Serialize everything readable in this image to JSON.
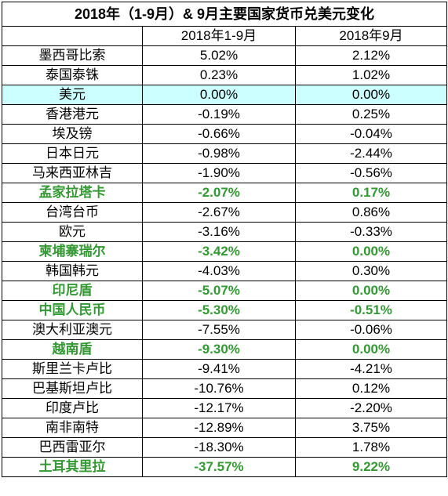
{
  "chart_data": {
    "type": "table",
    "title": "2018年（1-9月）& 9月主要国家货币兑美元变化",
    "columns": [
      "",
      "2018年1-9月",
      "2018年9月"
    ],
    "highlight_color": "#ccffff",
    "emphasis_color": "#339933",
    "rows": [
      {
        "name": "墨西哥比索",
        "ytd": "5.02%",
        "sep": "2.12%",
        "style": "normal"
      },
      {
        "name": "泰国泰铢",
        "ytd": "0.23%",
        "sep": "1.02%",
        "style": "normal"
      },
      {
        "name": "美元",
        "ytd": "0.00%",
        "sep": "0.00%",
        "style": "highlight"
      },
      {
        "name": "香港港元",
        "ytd": "-0.19%",
        "sep": "0.25%",
        "style": "normal"
      },
      {
        "name": "埃及镑",
        "ytd": "-0.66%",
        "sep": "-0.04%",
        "style": "normal"
      },
      {
        "name": "日本日元",
        "ytd": "-0.98%",
        "sep": "-2.44%",
        "style": "normal"
      },
      {
        "name": "马来西亚林吉",
        "ytd": "-1.90%",
        "sep": "-0.56%",
        "style": "normal"
      },
      {
        "name": "孟家拉塔卡",
        "ytd": "-2.07%",
        "sep": "0.17%",
        "style": "emphasis"
      },
      {
        "name": "台湾台币",
        "ytd": "-2.67%",
        "sep": "0.86%",
        "style": "normal"
      },
      {
        "name": "欧元",
        "ytd": "-3.16%",
        "sep": "-0.33%",
        "style": "normal"
      },
      {
        "name": "柬埔寨瑞尔",
        "ytd": "-3.42%",
        "sep": "0.00%",
        "style": "emphasis"
      },
      {
        "name": "韩国韩元",
        "ytd": "-4.03%",
        "sep": "0.30%",
        "style": "normal"
      },
      {
        "name": "印尼盾",
        "ytd": "-5.07%",
        "sep": "0.00%",
        "style": "emphasis"
      },
      {
        "name": "中国人民币",
        "ytd": "-5.30%",
        "sep": "-0.51%",
        "style": "emphasis"
      },
      {
        "name": "澳大利亚澳元",
        "ytd": "-7.55%",
        "sep": "-0.06%",
        "style": "normal"
      },
      {
        "name": "越南盾",
        "ytd": "-9.30%",
        "sep": "0.00%",
        "style": "emphasis"
      },
      {
        "name": "斯里兰卡卢比",
        "ytd": "-9.41%",
        "sep": "-4.21%",
        "style": "normal"
      },
      {
        "name": "巴基斯坦卢比",
        "ytd": "-10.76%",
        "sep": "0.12%",
        "style": "normal"
      },
      {
        "name": "印度卢比",
        "ytd": "-12.17%",
        "sep": "-2.20%",
        "style": "normal"
      },
      {
        "name": "南非南特",
        "ytd": "-12.89%",
        "sep": "3.75%",
        "style": "normal"
      },
      {
        "name": "巴西雷亚尔",
        "ytd": "-18.30%",
        "sep": "1.78%",
        "style": "normal"
      },
      {
        "name": "土耳其里拉",
        "ytd": "-37.57%",
        "sep": "9.22%",
        "style": "emphasis"
      }
    ]
  }
}
